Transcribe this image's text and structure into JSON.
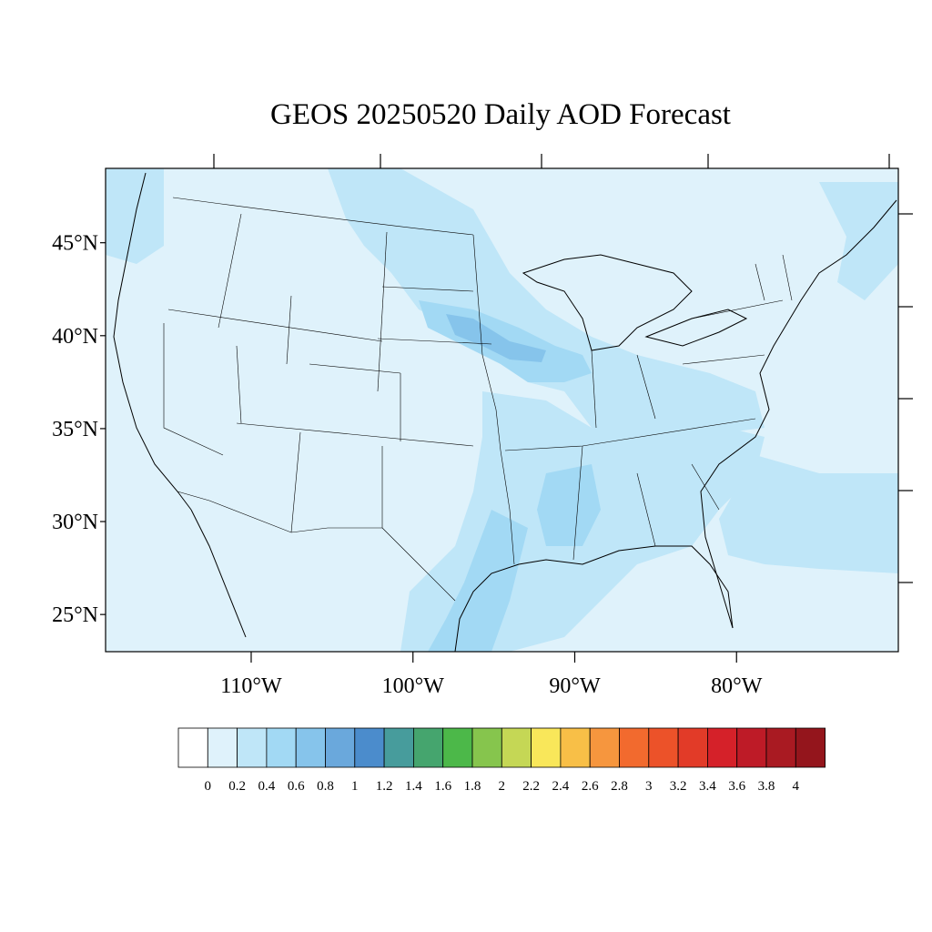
{
  "title": "GEOS 20250520 Daily AOD Forecast",
  "map": {
    "lon_range": [
      -119,
      -70
    ],
    "lat_range": [
      23,
      49
    ],
    "lat_labels": [
      "45°N",
      "40°N",
      "35°N",
      "30°N",
      "25°N"
    ],
    "lat_values": [
      45,
      40,
      35,
      30,
      25
    ],
    "lon_labels": [
      "110°W",
      "100°W",
      "90°W",
      "80°W"
    ],
    "lon_values": [
      -110,
      -100,
      -90,
      -80
    ],
    "background_color": "#dff2fb",
    "aod_regions": [
      {
        "level": "0.2-0.4",
        "color": "#bfe6f8",
        "area": "North Dakota / South Dakota corridor"
      },
      {
        "level": "0.2-0.4",
        "color": "#bfe6f8",
        "area": "Mississippi Valley and Southeast"
      },
      {
        "level": "0.2-0.4",
        "color": "#bfe6f8",
        "area": "Western Atlantic offshore"
      },
      {
        "level": "0.4-0.6",
        "color": "#a2d9f4",
        "area": "Texas Gulf coast"
      },
      {
        "level": "0.4-0.6",
        "color": "#a2d9f4",
        "area": "Iowa / Illinois"
      },
      {
        "level": "0.6-0.8",
        "color": "#86c4eb",
        "area": "Nebraska / Iowa core"
      }
    ]
  },
  "colorbar": {
    "colors": [
      "#ffffff",
      "#dff2fb",
      "#bfe6f8",
      "#a2d9f4",
      "#86c4eb",
      "#6aa8dc",
      "#4b8ccc",
      "#479c9c",
      "#45a56e",
      "#4cb849",
      "#86c54d",
      "#c5d755",
      "#f9e75a",
      "#f8bf47",
      "#f6963e",
      "#f26a2e",
      "#ec5229",
      "#e23b28",
      "#d52129",
      "#be1b27",
      "#a91a22",
      "#94151c"
    ],
    "labels": [
      "0",
      "0.2",
      "0.4",
      "0.6",
      "0.8",
      "1",
      "1.2",
      "1.4",
      "1.6",
      "1.8",
      "2",
      "2.2",
      "2.4",
      "2.6",
      "2.8",
      "3",
      "3.2",
      "3.4",
      "3.6",
      "3.8",
      "4"
    ]
  }
}
